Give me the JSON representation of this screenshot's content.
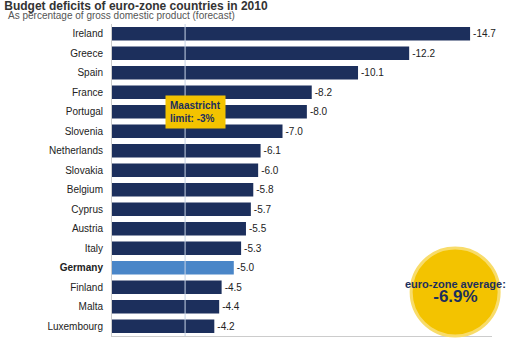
{
  "chart_data": {
    "type": "bar",
    "title": "Budget deficits of euro-zone countries in 2010",
    "subtitle": "As percentage of gross domestic product (forecast)",
    "orientation": "horizontal",
    "categories": [
      "Ireland",
      "Greece",
      "Spain",
      "France",
      "Portugal",
      "Slovenia",
      "Netherlands",
      "Slovakia",
      "Belgium",
      "Cyprus",
      "Austria",
      "Italy",
      "Germany",
      "Finland",
      "Malta",
      "Luxembourg"
    ],
    "values": [
      -14.7,
      -12.2,
      -10.1,
      -8.2,
      -8.0,
      -7.0,
      -6.1,
      -6.0,
      -5.8,
      -5.7,
      -5.5,
      -5.3,
      -5.0,
      -4.5,
      -4.4,
      -4.2
    ],
    "value_labels": [
      "-14.7",
      "-12.2",
      "-10.1",
      "-8.2",
      "-8.0",
      "-7.0",
      "-6.1",
      "-6.0",
      "-5.8",
      "-5.7",
      "-5.5",
      "-5.3",
      "-5.0",
      "-4.5",
      "-4.4",
      "-4.2"
    ],
    "colors": [
      "#1c2f5c",
      "#1c2f5c",
      "#1c2f5c",
      "#1c2f5c",
      "#1c2f5c",
      "#1c2f5c",
      "#1c2f5c",
      "#1c2f5c",
      "#1c2f5c",
      "#1c2f5c",
      "#1c2f5c",
      "#1c2f5c",
      "#4a86c8",
      "#1c2f5c",
      "#1c2f5c",
      "#1c2f5c"
    ],
    "data_labels": true,
    "tick_labels": "y",
    "grid": false,
    "xlim": [
      0,
      -15.6
    ],
    "annotations": [
      {
        "text": "Maastricht limit: -3%",
        "x": -3
      },
      {
        "text": "euro-zone average: -6.9%"
      }
    ]
  }
}
